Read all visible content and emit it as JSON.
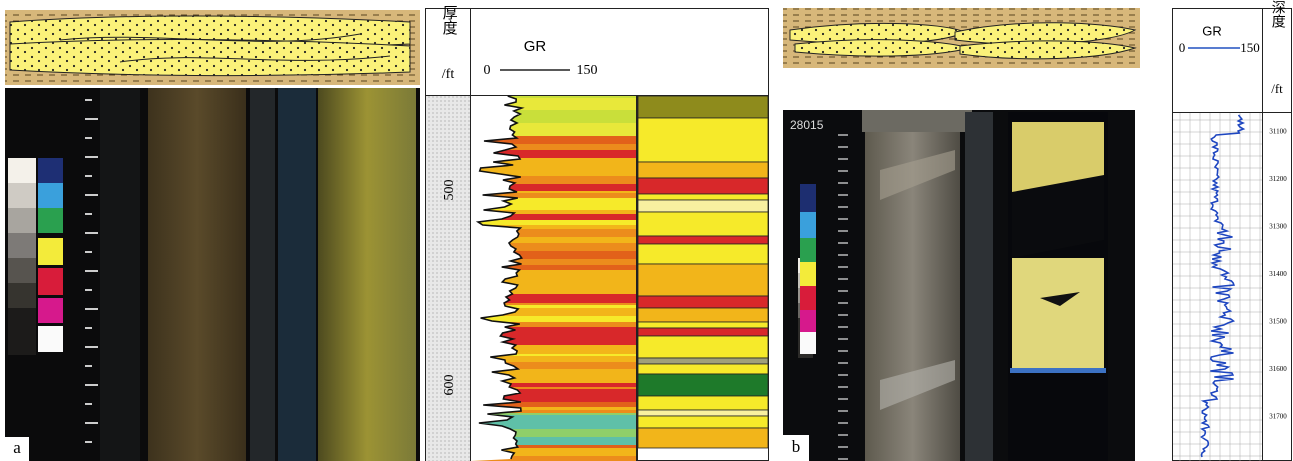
{
  "panel_a": {
    "label": "a"
  },
  "log_a": {
    "depth_header": "厚度",
    "depth_unit": "/ft",
    "gr_label": "GR",
    "gr_min": "0",
    "gr_max": "150",
    "depth_ticks": [
      "500",
      "600"
    ]
  },
  "panel_b": {
    "label": "b",
    "core_id": "28015"
  },
  "log_b": {
    "gr_label": "GR",
    "gr_min": "0",
    "gr_max": "150",
    "depth_header": "深度",
    "depth_unit": "/ft",
    "depth_ticks": [
      "31100",
      "31200",
      "31300",
      "31400",
      "31500",
      "31600",
      "31700"
    ]
  }
}
